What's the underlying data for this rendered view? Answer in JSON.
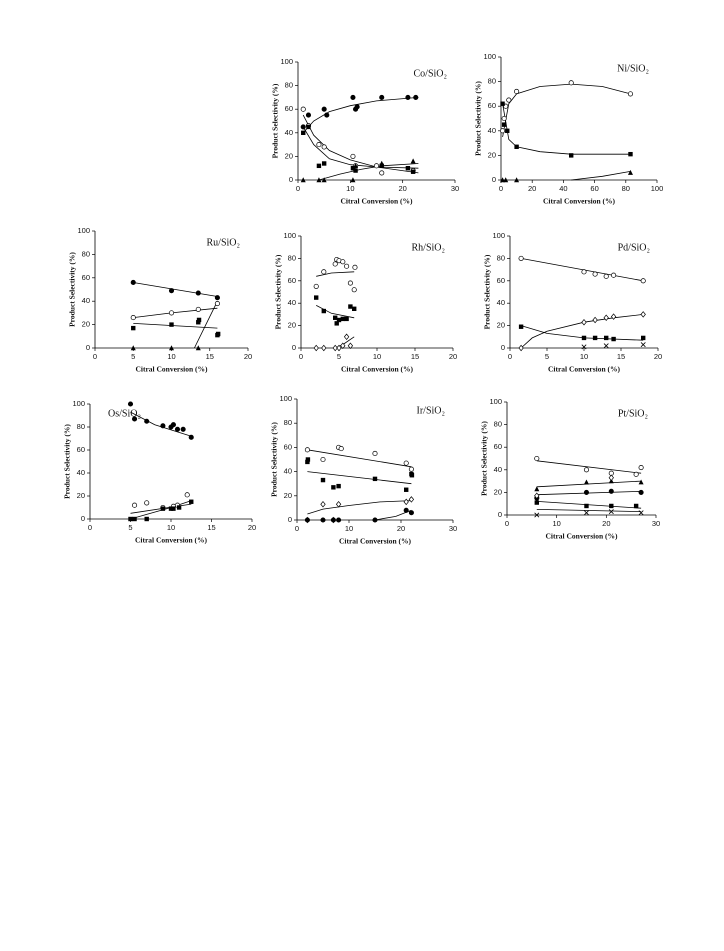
{
  "chart_data": [
    {
      "type": "scatter",
      "title": "Co/SiO₂",
      "xlabel": "Citral Conversion (%)",
      "ylabel": "Product Selectivity (%)",
      "color": "#000000",
      "xlim": [
        0,
        30
      ],
      "ylim": [
        0,
        100
      ],
      "xticks": [
        0,
        10,
        20,
        30
      ],
      "yticks": [
        0,
        20,
        40,
        60,
        80,
        100
      ],
      "series": [
        {
          "marker": "filled-circle",
          "x": [
            1,
            2,
            5,
            5.5,
            10.5,
            11,
            11.3,
            16,
            21,
            22.5
          ],
          "values": [
            45,
            55,
            60,
            55,
            70,
            60,
            62,
            70,
            70,
            70
          ]
        },
        {
          "marker": "open-circle",
          "x": [
            1,
            2,
            4,
            5,
            10.5,
            11,
            15,
            16,
            22
          ],
          "values": [
            60,
            46,
            30,
            28,
            20,
            12,
            12,
            6,
            8
          ]
        },
        {
          "marker": "filled-square",
          "x": [
            1,
            2,
            4,
            5,
            10.5,
            11,
            16,
            21,
            22
          ],
          "values": [
            40,
            45,
            12,
            14,
            10,
            8,
            12,
            10,
            7
          ]
        },
        {
          "marker": "filled-triangle",
          "x": [
            1,
            4,
            5,
            10.5,
            11,
            16,
            22
          ],
          "values": [
            0,
            0,
            0,
            0,
            12,
            14,
            16
          ]
        }
      ],
      "fits": [
        {
          "x": [
            1,
            3,
            6,
            10,
            15,
            23
          ],
          "values": [
            40,
            50,
            58,
            63,
            67,
            70
          ]
        },
        {
          "x": [
            1,
            3,
            6,
            10,
            15,
            23
          ],
          "values": [
            55,
            38,
            25,
            17,
            11,
            6
          ]
        },
        {
          "x": [
            1,
            3,
            6,
            10,
            15,
            23
          ],
          "values": [
            45,
            30,
            18,
            13,
            11,
            10
          ]
        },
        {
          "x": [
            4,
            8,
            12,
            16,
            23
          ],
          "values": [
            0,
            5,
            9,
            12,
            14
          ]
        }
      ]
    },
    {
      "type": "scatter",
      "title": "Ni/SiO₂",
      "xlabel": "Citral Conversion (%)",
      "ylabel": "Product Selectivity (%)",
      "color": "#000000",
      "xlim": [
        0,
        100
      ],
      "ylim": [
        0,
        100
      ],
      "xticks": [
        0,
        20,
        40,
        60,
        80,
        100
      ],
      "yticks": [
        0,
        20,
        40,
        60,
        80,
        100
      ],
      "series": [
        {
          "marker": "open-circle",
          "x": [
            1,
            2,
            3,
            5,
            10,
            45,
            83
          ],
          "values": [
            40,
            50,
            60,
            65,
            72,
            79,
            70
          ]
        },
        {
          "marker": "filled-square",
          "x": [
            1,
            2,
            4,
            10,
            45,
            83
          ],
          "values": [
            62,
            45,
            40,
            27,
            20,
            21
          ]
        },
        {
          "marker": "filled-triangle",
          "x": [
            1,
            3,
            10,
            83
          ],
          "values": [
            0,
            0,
            0,
            6
          ]
        }
      ],
      "fits": [
        {
          "x": [
            1,
            5,
            10,
            25,
            45,
            65,
            83
          ],
          "values": [
            35,
            62,
            70,
            76,
            78,
            76,
            70
          ]
        },
        {
          "x": [
            1,
            5,
            10,
            25,
            45,
            83
          ],
          "values": [
            62,
            33,
            27,
            23,
            21,
            21
          ]
        },
        {
          "x": [
            45,
            65,
            83
          ],
          "values": [
            0,
            3,
            7
          ]
        }
      ]
    },
    {
      "type": "scatter",
      "title": "Ru/SiO₂",
      "xlabel": "Citral Conversion (%)",
      "ylabel": "Product Selectivity (%)",
      "color": "#000000",
      "xlim": [
        0,
        20
      ],
      "ylim": [
        0,
        100
      ],
      "xticks": [
        0,
        5,
        10,
        15,
        20
      ],
      "yticks": [
        0,
        20,
        40,
        60,
        80,
        100
      ],
      "series": [
        {
          "marker": "filled-circle",
          "x": [
            5,
            10,
            13.5,
            16
          ],
          "values": [
            56,
            49,
            47,
            43
          ]
        },
        {
          "marker": "open-circle",
          "x": [
            5,
            10,
            13.5,
            16
          ],
          "values": [
            26,
            30,
            33,
            38
          ]
        },
        {
          "marker": "filled-square",
          "x": [
            5,
            10,
            13.5,
            13.6,
            16,
            16.1
          ],
          "values": [
            17,
            20,
            22,
            24,
            11,
            12
          ]
        },
        {
          "marker": "filled-triangle",
          "x": [
            5,
            10,
            13.5
          ],
          "values": [
            0,
            0,
            0
          ]
        }
      ],
      "fits": [
        {
          "x": [
            5,
            16
          ],
          "values": [
            56,
            44
          ]
        },
        {
          "x": [
            5,
            10,
            16
          ],
          "values": [
            26,
            30,
            34
          ]
        },
        {
          "x": [
            5,
            16
          ],
          "values": [
            21,
            17
          ]
        },
        {
          "x": [
            13,
            14.5,
            16
          ],
          "values": [
            0,
            20,
            40
          ]
        }
      ]
    },
    {
      "type": "scatter",
      "title": "Rh/SiO₂",
      "xlabel": "Citral Conversion (%)",
      "ylabel": "Product Selectivity (%)",
      "color": "#000000",
      "xlim": [
        0,
        20
      ],
      "ylim": [
        0,
        100
      ],
      "xticks": [
        0,
        5,
        10,
        15,
        20
      ],
      "yticks": [
        0,
        20,
        40,
        60,
        80,
        100
      ],
      "series": [
        {
          "marker": "open-circle",
          "x": [
            2,
            3,
            4.5,
            4.7,
            5,
            5.5,
            6,
            6.5,
            7,
            7.1
          ],
          "values": [
            55,
            68,
            75,
            79,
            78,
            77,
            73,
            58,
            52,
            72
          ]
        },
        {
          "marker": "filled-square",
          "x": [
            2,
            3,
            4.5,
            4.7,
            5,
            5.5,
            6,
            6.5,
            7
          ],
          "values": [
            45,
            33,
            27,
            22,
            25,
            26,
            26,
            37,
            35
          ]
        },
        {
          "marker": "open-diamond",
          "x": [
            2,
            3,
            4.5,
            5,
            5.5,
            6,
            6.5
          ],
          "values": [
            0,
            0,
            0,
            0,
            2,
            10,
            2
          ]
        }
      ],
      "fits": [
        {
          "x": [
            2,
            4,
            7
          ],
          "values": [
            64,
            67,
            68
          ]
        },
        {
          "x": [
            2,
            4,
            7
          ],
          "values": [
            38,
            31,
            27
          ]
        },
        {
          "x": [
            4.5,
            5.5,
            7
          ],
          "values": [
            0,
            3,
            10
          ]
        }
      ]
    },
    {
      "type": "scatter",
      "title": "Pd/SiO₂",
      "xlabel": "Citral Conversion (%)",
      "ylabel": "Product Selectivity (%)",
      "color": "#000000",
      "xlim": [
        0,
        20
      ],
      "ylim": [
        0,
        100
      ],
      "xticks": [
        0,
        5,
        10,
        15,
        20
      ],
      "yticks": [
        0,
        20,
        40,
        60,
        80,
        100
      ],
      "series": [
        {
          "marker": "open-circle",
          "x": [
            1.5,
            10,
            11.5,
            13,
            14,
            18
          ],
          "values": [
            80,
            68,
            66,
            64,
            65,
            60
          ]
        },
        {
          "marker": "open-diamond",
          "x": [
            1.5,
            10,
            11.5,
            13,
            14,
            18
          ],
          "values": [
            0,
            23,
            25,
            27,
            28,
            30
          ]
        },
        {
          "marker": "filled-square",
          "x": [
            1.5,
            10,
            11.5,
            13,
            14,
            18
          ],
          "values": [
            19,
            9,
            9,
            9,
            8,
            9
          ]
        },
        {
          "marker": "x",
          "x": [
            10,
            13,
            18
          ],
          "values": [
            1,
            2,
            3
          ]
        }
      ],
      "fits": [
        {
          "x": [
            1.5,
            18
          ],
          "values": [
            80,
            60
          ]
        },
        {
          "x": [
            1.5,
            3,
            5,
            10,
            14,
            18
          ],
          "values": [
            0,
            9,
            15,
            23,
            27,
            30
          ]
        },
        {
          "x": [
            1.5,
            5,
            10,
            18
          ],
          "values": [
            20,
            13,
            9,
            7
          ]
        }
      ]
    },
    {
      "type": "scatter",
      "title": "Os/SiO₂",
      "xlabel": "Citral Conversion (%)",
      "ylabel": "Product Selectivity (%)",
      "color": "#000000",
      "xlim": [
        0,
        20
      ],
      "ylim": [
        0,
        100
      ],
      "xticks": [
        0,
        5,
        10,
        15,
        20
      ],
      "yticks": [
        0,
        20,
        40,
        60,
        80,
        100
      ],
      "series": [
        {
          "marker": "filled-circle",
          "x": [
            5,
            5.5,
            7,
            9,
            10,
            10.3,
            10.8,
            11.5,
            12.5
          ],
          "values": [
            100,
            87,
            85,
            81,
            80,
            82,
            78,
            78,
            71
          ]
        },
        {
          "marker": "open-circle",
          "x": [
            5.5,
            7,
            9,
            10.3,
            10.8,
            12
          ],
          "values": [
            12,
            14,
            10,
            11,
            12,
            21
          ]
        },
        {
          "marker": "filled-square",
          "x": [
            5,
            5.5,
            7,
            9,
            10,
            10.3,
            11,
            12.5
          ],
          "values": [
            0,
            0,
            0,
            9,
            9,
            9,
            10,
            15
          ]
        }
      ],
      "fits": [
        {
          "x": [
            5,
            8,
            12.5
          ],
          "values": [
            93,
            82,
            72
          ]
        },
        {
          "x": [
            5,
            12.5
          ],
          "values": [
            5,
            13
          ]
        },
        {
          "x": [
            5,
            7,
            10,
            12.5
          ],
          "values": [
            0,
            4,
            10,
            16
          ]
        }
      ]
    },
    {
      "type": "scatter",
      "title": "Ir/SiO₂",
      "xlabel": "Citral Conversion (%)",
      "ylabel": "Product Selectivity (%)",
      "color": "#000000",
      "xlim": [
        0,
        30
      ],
      "ylim": [
        0,
        100
      ],
      "xticks": [
        0,
        10,
        20,
        30
      ],
      "yticks": [
        0,
        20,
        40,
        60,
        80,
        100
      ],
      "series": [
        {
          "marker": "open-circle",
          "x": [
            2,
            5,
            8,
            8.5,
            15,
            21,
            22
          ],
          "values": [
            58,
            50,
            60,
            59,
            55,
            47,
            42
          ]
        },
        {
          "marker": "filled-square",
          "x": [
            2,
            2.1,
            5,
            7,
            8,
            15,
            21,
            22,
            22.1
          ],
          "values": [
            48,
            50,
            33,
            27,
            28,
            34,
            25,
            38,
            37
          ]
        },
        {
          "marker": "open-diamond",
          "x": [
            2,
            5,
            7,
            8,
            21,
            22
          ],
          "values": [
            0,
            13,
            0,
            13,
            15,
            17
          ]
        },
        {
          "marker": "filled-circle",
          "x": [
            2,
            5,
            7,
            8,
            15,
            21,
            22
          ],
          "values": [
            0,
            0,
            0,
            0,
            0,
            8,
            6
          ]
        }
      ],
      "fits": [
        {
          "x": [
            2,
            22
          ],
          "values": [
            58,
            44
          ]
        },
        {
          "x": [
            2,
            22
          ],
          "values": [
            40,
            30
          ]
        },
        {
          "x": [
            2,
            5,
            10,
            16,
            22
          ],
          "values": [
            5,
            9,
            12,
            15,
            16
          ]
        },
        {
          "x": [
            15,
            19,
            22
          ],
          "values": [
            0,
            3,
            8
          ]
        }
      ]
    },
    {
      "type": "scatter",
      "title": "Pt/SiO₂",
      "xlabel": "Citral Conversion (%)",
      "ylabel": "Product Selectivity (%)",
      "color": "#000000",
      "xlim": [
        0,
        30
      ],
      "ylim": [
        0,
        100
      ],
      "xticks": [
        0,
        10,
        20,
        30
      ],
      "yticks": [
        0,
        20,
        40,
        60,
        80,
        100
      ],
      "series": [
        {
          "marker": "open-circle",
          "x": [
            6,
            16,
            21,
            26,
            27
          ],
          "values": [
            50,
            40,
            37,
            36,
            42
          ]
        },
        {
          "marker": "filled-triangle",
          "x": [
            6,
            16,
            21,
            27
          ],
          "values": [
            23,
            29,
            30,
            29
          ]
        },
        {
          "marker": "filled-circle",
          "x": [
            6,
            16,
            21,
            27
          ],
          "values": [
            15,
            20,
            21,
            20
          ]
        },
        {
          "marker": "open-diamond",
          "x": [
            6,
            21
          ],
          "values": [
            17,
            33
          ]
        },
        {
          "marker": "filled-square",
          "x": [
            6,
            16,
            21,
            26
          ],
          "values": [
            11,
            8,
            8,
            8
          ]
        },
        {
          "marker": "x",
          "x": [
            6,
            16,
            21,
            27
          ],
          "values": [
            0,
            2,
            3,
            2
          ]
        }
      ],
      "fits": [
        {
          "x": [
            6,
            27
          ],
          "values": [
            48,
            37
          ]
        },
        {
          "x": [
            6,
            27
          ],
          "values": [
            25,
            30
          ]
        },
        {
          "x": [
            6,
            27
          ],
          "values": [
            18,
            21
          ]
        },
        {
          "x": [
            6,
            27
          ],
          "values": [
            12,
            6
          ]
        },
        {
          "x": [
            6,
            27
          ],
          "values": [
            5,
            3
          ]
        }
      ]
    }
  ]
}
